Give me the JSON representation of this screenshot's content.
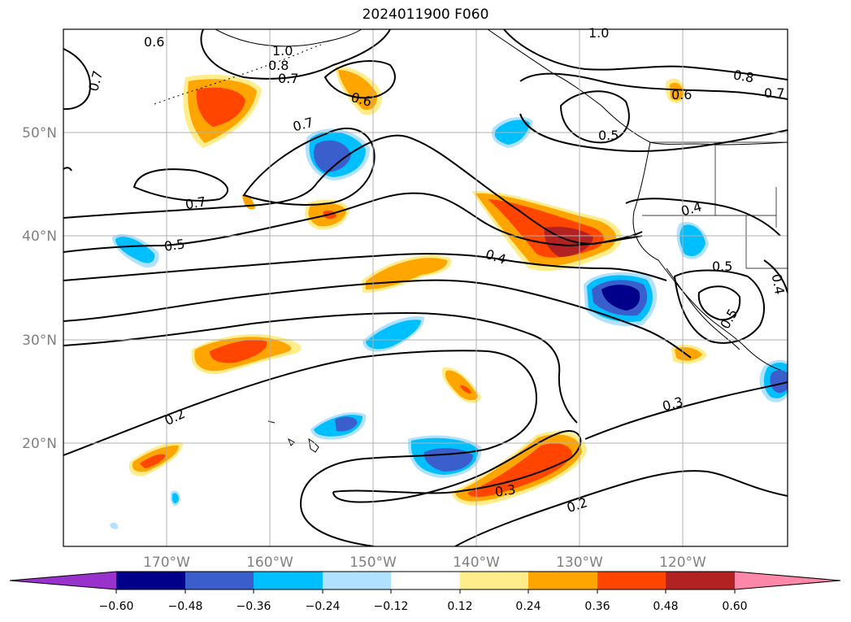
{
  "title": "2024011900 F060",
  "latitude_labels": [
    "50°N",
    "40°N",
    "30°N",
    "20°N"
  ],
  "longitude_labels": [
    "170°W",
    "160°W",
    "150°W",
    "140°W",
    "130°W",
    "120°W"
  ],
  "contour_labels": [
    "0.6",
    "0.7",
    "1.0",
    "0.8",
    "0.7",
    "0.6",
    "1.0",
    "0.8",
    "0.7",
    "0.6",
    "0.5",
    "0.7",
    "0.7",
    "0.5",
    "0.4",
    "0.4",
    "0.5",
    "0.4",
    "0.5",
    "0.2",
    "0.3",
    "0.3",
    "0.2"
  ],
  "colorbar": {
    "tick_labels": [
      "−0.60",
      "−0.48",
      "−0.36",
      "−0.24",
      "−0.12",
      "0.12",
      "0.24",
      "0.36",
      "0.48",
      "0.60"
    ],
    "colors": [
      "#9932cc",
      "#00008b",
      "#3a5fcd",
      "#00bfff",
      "#b0e2ff",
      "#ffffff",
      "#ffec8b",
      "#ffa500",
      "#ff4500",
      "#b22222",
      "#ff88aa"
    ]
  },
  "fill_colors": {
    "neg_strong": "#00008b",
    "neg_mid": "#3a5fcd",
    "neg_light": "#00bfff",
    "neg_faint": "#b0e2ff",
    "pos_faint": "#ffec8b",
    "pos_light": "#ffa500",
    "pos_mid": "#ff4500",
    "pos_strong": "#b22222"
  }
}
